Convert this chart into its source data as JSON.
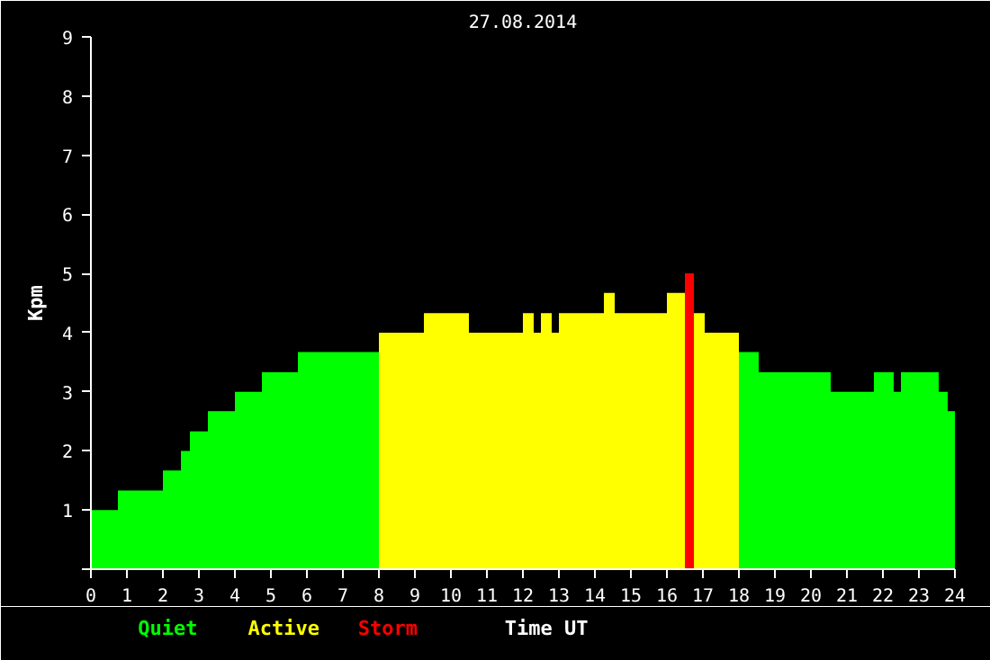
{
  "chart_data": {
    "type": "histogram",
    "title": "27.08.2014",
    "xlabel": "Time UT",
    "ylabel": "Kpm",
    "bins": [
      0,
      0.75,
      2,
      2.5,
      2.75,
      3.25,
      4,
      4.75,
      5.75,
      8,
      9.25,
      10.5,
      12,
      12.3,
      12.5,
      12.8,
      13,
      14.25,
      14.55,
      16,
      16.5,
      16.75,
      17.05,
      18,
      18.55,
      20.55,
      21.75,
      22.3,
      22.5,
      23.55,
      23.8,
      24
    ],
    "series": [
      {
        "name": "Quiet",
        "color": "#00ff00",
        "values": [
          1,
          1.33,
          1.67,
          2,
          2.33,
          2.67,
          3,
          3.33,
          3.67,
          null,
          null,
          null,
          null,
          null,
          null,
          null,
          null,
          null,
          null,
          null,
          null,
          null,
          null,
          3.67,
          3.33,
          3,
          3.33,
          3,
          3.33,
          3,
          2.67
        ]
      },
      {
        "name": "Active",
        "color": "#ffff00",
        "values": [
          null,
          null,
          null,
          null,
          null,
          null,
          null,
          null,
          null,
          4,
          4.33,
          4,
          4.33,
          4,
          4.33,
          4,
          4.33,
          4.67,
          4.33,
          4.67,
          null,
          4.33,
          4,
          null,
          null,
          null,
          null,
          null,
          null,
          null,
          null
        ]
      },
      {
        "name": "Storm",
        "color": "#ff0000",
        "values": [
          null,
          null,
          null,
          null,
          null,
          null,
          null,
          null,
          null,
          null,
          null,
          null,
          null,
          null,
          null,
          null,
          null,
          null,
          null,
          null,
          5,
          null,
          null,
          null,
          null,
          null,
          null,
          null,
          null,
          null,
          null
        ]
      }
    ],
    "xlim": [
      0,
      24
    ],
    "ylim": [
      0,
      9
    ],
    "xticks": [
      0,
      1,
      2,
      3,
      4,
      5,
      6,
      7,
      8,
      9,
      10,
      11,
      12,
      13,
      14,
      15,
      16,
      17,
      18,
      19,
      20,
      21,
      22,
      23,
      24
    ],
    "yticks": [
      {
        "value": 0,
        "label": null
      },
      1,
      2,
      3,
      4,
      5,
      6,
      7,
      8,
      9
    ],
    "grid": false
  }
}
